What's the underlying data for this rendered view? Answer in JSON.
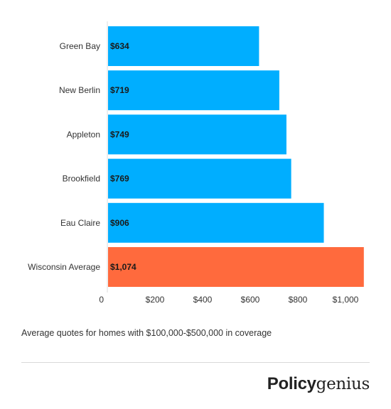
{
  "chart_data": {
    "type": "bar",
    "orientation": "horizontal",
    "categories": [
      "Green Bay",
      "New Berlin",
      "Appleton",
      "Brookfield",
      "Eau Claire",
      "Wisconsin Average"
    ],
    "values": [
      634,
      719,
      749,
      769,
      906,
      1074
    ],
    "value_labels": [
      "$634",
      "$719",
      "$749",
      "$769",
      "$906",
      "$1,074"
    ],
    "x_ticks": [
      0,
      200,
      400,
      600,
      800,
      1000
    ],
    "x_tick_labels": [
      "0",
      "$200",
      "$400",
      "$600",
      "$800",
      "$1,000"
    ],
    "xlim": [
      0,
      1080
    ],
    "grid": false,
    "colors": [
      "#00aeff",
      "#00aeff",
      "#00aeff",
      "#00aeff",
      "#00aeff",
      "#ff6a3d"
    ]
  },
  "caption": "Average quotes for homes with $100,000-$500,000 in coverage",
  "brand": {
    "part1": "Policy",
    "part2": "genius"
  }
}
